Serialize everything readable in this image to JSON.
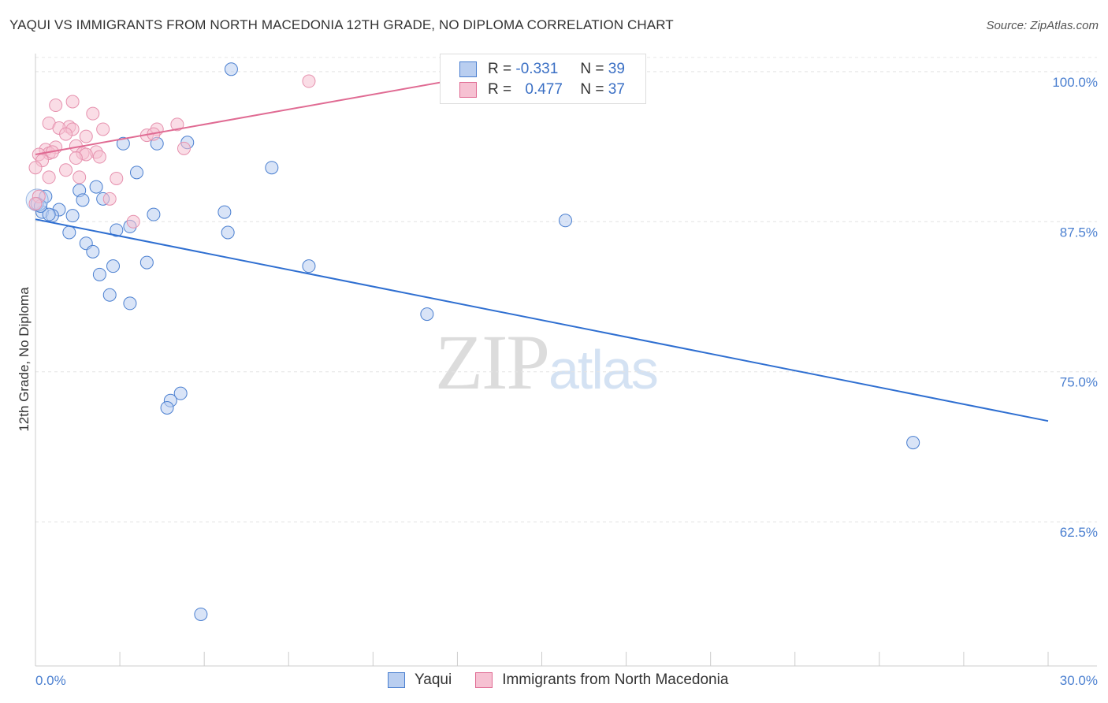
{
  "title": "YAQUI VS IMMIGRANTS FROM NORTH MACEDONIA 12TH GRADE, NO DIPLOMA CORRELATION CHART",
  "source": "Source: ZipAtlas.com",
  "watermark": {
    "zip": "ZIP",
    "atlas": "atlas"
  },
  "legend": {
    "r_label": "R =",
    "n_label": "N =",
    "series": [
      {
        "name": "Yaqui",
        "r": "-0.331",
        "n": "39",
        "color": "#4a7fd0",
        "fill": "#b9cef0"
      },
      {
        "name": "Immigrants from North Macedonia",
        "r": "0.477",
        "n": "37",
        "color": "#e06b93",
        "fill": "#f6c1d2"
      }
    ]
  },
  "chart_data": {
    "type": "scatter",
    "title": "YAQUI VS IMMIGRANTS FROM NORTH MACEDONIA 12TH GRADE, NO DIPLOMA CORRELATION CHART",
    "xlabel": "",
    "ylabel": "12th Grade, No Diploma",
    "xlim": [
      0,
      30
    ],
    "ylim": [
      50.5,
      101.5
    ],
    "x_tick_labels": [
      "0.0%",
      "30.0%"
    ],
    "y_ticks": [
      62.5,
      75.0,
      87.5,
      100.0
    ],
    "y_tick_labels": [
      "62.5%",
      "75.0%",
      "87.5%",
      "100.0%"
    ],
    "grid": true,
    "legend_position": "top-center",
    "series": [
      {
        "name": "Yaqui",
        "color": "#4a7fd0",
        "points": [
          [
            5.8,
            100.2
          ],
          [
            2.6,
            94.0
          ],
          [
            3.6,
            94.0
          ],
          [
            4.5,
            94.1
          ],
          [
            3.0,
            91.6
          ],
          [
            7.0,
            92.0
          ],
          [
            1.8,
            90.4
          ],
          [
            1.3,
            90.1
          ],
          [
            0.3,
            89.6
          ],
          [
            1.4,
            89.3
          ],
          [
            2.0,
            89.4
          ],
          [
            0.7,
            88.5
          ],
          [
            0.2,
            88.3
          ],
          [
            0.5,
            88.0
          ],
          [
            1.1,
            88.0
          ],
          [
            0.4,
            88.1
          ],
          [
            3.5,
            88.1
          ],
          [
            5.6,
            88.3
          ],
          [
            15.7,
            87.6
          ],
          [
            2.8,
            87.1
          ],
          [
            2.4,
            86.8
          ],
          [
            1.0,
            86.6
          ],
          [
            5.7,
            86.6
          ],
          [
            1.5,
            85.7
          ],
          [
            1.7,
            85.0
          ],
          [
            3.3,
            84.1
          ],
          [
            2.3,
            83.8
          ],
          [
            8.1,
            83.8
          ],
          [
            1.9,
            83.1
          ],
          [
            2.2,
            81.4
          ],
          [
            2.8,
            80.7
          ],
          [
            11.6,
            79.8
          ],
          [
            4.3,
            73.2
          ],
          [
            4.0,
            72.6
          ],
          [
            3.9,
            72.0
          ],
          [
            26.0,
            69.1
          ],
          [
            4.9,
            54.8
          ],
          [
            0.05,
            89.0
          ],
          [
            0.15,
            88.8
          ]
        ]
      },
      {
        "name": "Immigrants from North Macedonia",
        "color": "#e06b93",
        "points": [
          [
            8.1,
            99.2
          ],
          [
            1.1,
            97.5
          ],
          [
            0.6,
            97.2
          ],
          [
            1.7,
            96.5
          ],
          [
            0.4,
            95.7
          ],
          [
            4.2,
            95.6
          ],
          [
            1.0,
            95.4
          ],
          [
            0.7,
            95.3
          ],
          [
            1.1,
            95.2
          ],
          [
            3.6,
            95.2
          ],
          [
            2.0,
            95.2
          ],
          [
            3.3,
            94.7
          ],
          [
            3.5,
            94.8
          ],
          [
            0.9,
            94.8
          ],
          [
            1.5,
            94.6
          ],
          [
            1.2,
            93.8
          ],
          [
            0.6,
            93.7
          ],
          [
            0.3,
            93.5
          ],
          [
            4.4,
            93.6
          ],
          [
            0.4,
            93.2
          ],
          [
            0.1,
            93.1
          ],
          [
            1.4,
            93.2
          ],
          [
            1.8,
            93.3
          ],
          [
            1.5,
            93.1
          ],
          [
            1.2,
            92.8
          ],
          [
            1.9,
            92.9
          ],
          [
            0.2,
            92.6
          ],
          [
            0.0,
            92.0
          ],
          [
            0.9,
            91.8
          ],
          [
            0.4,
            91.2
          ],
          [
            1.3,
            91.2
          ],
          [
            2.4,
            91.1
          ],
          [
            0.1,
            89.6
          ],
          [
            2.2,
            89.4
          ],
          [
            0.0,
            89.0
          ],
          [
            2.9,
            87.5
          ],
          [
            0.5,
            93.3
          ]
        ]
      }
    ],
    "trendlines": [
      {
        "series": "Yaqui",
        "x": [
          0,
          30
        ],
        "y": [
          87.7,
          70.9
        ]
      },
      {
        "series": "Immigrants from North Macedonia",
        "x": [
          0,
          14.2
        ],
        "y": [
          93.1,
          100.2
        ]
      }
    ]
  }
}
